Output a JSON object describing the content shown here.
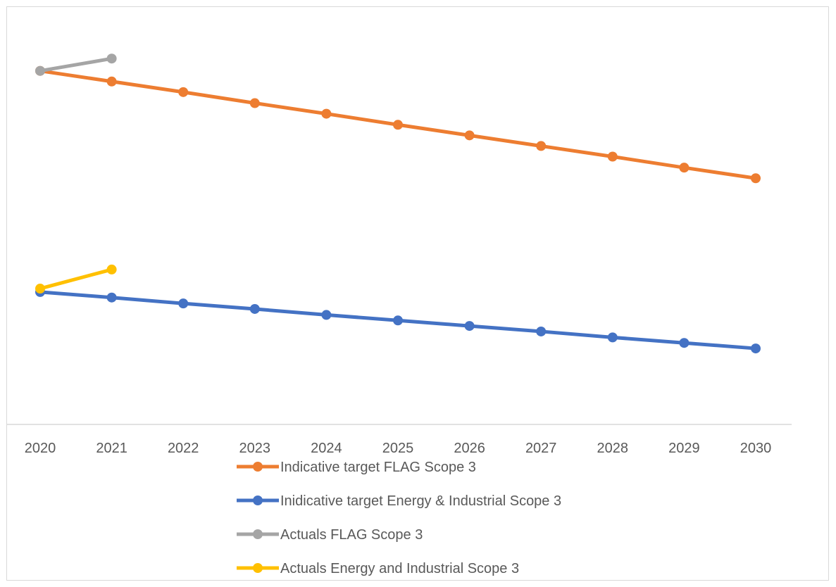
{
  "chart_data": {
    "type": "line",
    "categories": [
      "2020",
      "2021",
      "2022",
      "2023",
      "2024",
      "2025",
      "2026",
      "2027",
      "2028",
      "2029",
      "2030"
    ],
    "ylim": [
      0,
      100
    ],
    "grid": false,
    "legend_position": "bottom",
    "series": [
      {
        "name": "Indicative target FLAG Scope 3",
        "color": "#ED7D31",
        "values": [
          83.3,
          80.8,
          78.3,
          75.7,
          73.2,
          70.6,
          68.1,
          65.6,
          63.1,
          60.5,
          58.0
        ]
      },
      {
        "name": "Inidicative target Energy & Industrial Scope 3",
        "color": "#4472C4",
        "values": [
          31.2,
          29.9,
          28.5,
          27.2,
          25.8,
          24.5,
          23.2,
          21.9,
          20.5,
          19.2,
          17.9
        ]
      },
      {
        "name": "Actuals FLAG Scope 3",
        "color": "#A5A5A5",
        "values": [
          83.3,
          86.2,
          null,
          null,
          null,
          null,
          null,
          null,
          null,
          null,
          null
        ]
      },
      {
        "name": "Actuals Energy and Industrial Scope 3",
        "color": "#FFC000",
        "values": [
          32.0,
          36.5,
          null,
          null,
          null,
          null,
          null,
          null,
          null,
          null,
          null
        ]
      }
    ]
  }
}
